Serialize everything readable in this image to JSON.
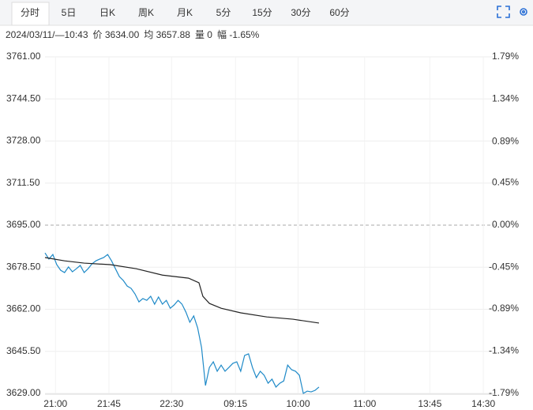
{
  "tabs": [
    "分时",
    "5日",
    "日K",
    "周K",
    "月K",
    "5分",
    "15分",
    "30分",
    "60分"
  ],
  "info": [
    "2024/03/11/—10:43",
    "价 3634.00",
    "均 3657.88",
    "量 0",
    "幅 -1.65%"
  ],
  "chart_data": {
    "type": "line",
    "xlim": [
      0,
      345
    ],
    "xticks": [
      {
        "value": 8,
        "label": "21:00"
      },
      {
        "value": 49,
        "label": "21:45"
      },
      {
        "value": 97,
        "label": "22:30"
      },
      {
        "value": 146,
        "label": "09:15"
      },
      {
        "value": 194,
        "label": "10:00"
      },
      {
        "value": 245,
        "label": "11:00"
      },
      {
        "value": 295,
        "label": "13:45"
      },
      {
        "value": 336,
        "label": "14:30"
      }
    ],
    "ylim": [
      3629,
      3761
    ],
    "yticks": [
      {
        "value": 3761,
        "label": "3761.00"
      },
      {
        "value": 3744.5,
        "label": "3744.50"
      },
      {
        "value": 3728,
        "label": "3728.00"
      },
      {
        "value": 3711.5,
        "label": "3711.50"
      },
      {
        "value": 3695,
        "label": "3695.00"
      },
      {
        "value": 3678.5,
        "label": "3678.50"
      },
      {
        "value": 3662,
        "label": "3662.00"
      },
      {
        "value": 3645.5,
        "label": "3645.50"
      },
      {
        "value": 3629,
        "label": "3629.00"
      }
    ],
    "y2lim": [
      -1.79,
      1.79
    ],
    "y2ticks": [
      {
        "value": 1.79,
        "label": "1.79%"
      },
      {
        "value": 1.34,
        "label": "1.34%"
      },
      {
        "value": 0.89,
        "label": "0.89%"
      },
      {
        "value": 0.45,
        "label": "0.45%"
      },
      {
        "value": 0,
        "label": "0.00%"
      },
      {
        "value": -0.45,
        "label": "-0.45%"
      },
      {
        "value": -0.89,
        "label": "-0.89%"
      },
      {
        "value": -1.34,
        "label": "-1.34%"
      },
      {
        "value": -1.79,
        "label": "-1.79%"
      }
    ],
    "grid": true,
    "series": [
      {
        "color": "#1f8ac8",
        "x": [
          0,
          3,
          6,
          9,
          12,
          15,
          18,
          21,
          24,
          27,
          30,
          33,
          36,
          39,
          42,
          45,
          48,
          51,
          54,
          57,
          60,
          63,
          66,
          69,
          72,
          75,
          78,
          81,
          84,
          87,
          90,
          93,
          96,
          99,
          102,
          105,
          108,
          111,
          114,
          117,
          120,
          123,
          126,
          129,
          132,
          135,
          138,
          141,
          144,
          147,
          150,
          153,
          156,
          159,
          162,
          165,
          168,
          171,
          174,
          177,
          180,
          183,
          186,
          189,
          192,
          195,
          198,
          201,
          204,
          207,
          210
        ],
        "values": [
          3684.1,
          3681.7,
          3683.5,
          3679.5,
          3677.3,
          3676.4,
          3678.6,
          3676.7,
          3677.9,
          3679.2,
          3676.4,
          3677.9,
          3679.8,
          3681.0,
          3681.7,
          3682.3,
          3683.5,
          3681.0,
          3677.9,
          3674.8,
          3673.3,
          3671.1,
          3670.2,
          3668.0,
          3664.9,
          3666.2,
          3665.5,
          3667.1,
          3664.0,
          3666.8,
          3664.0,
          3665.5,
          3662.4,
          3663.7,
          3665.5,
          3664.0,
          3660.9,
          3656.9,
          3659.4,
          3654.7,
          3647.0,
          3632.1,
          3639.2,
          3641.4,
          3637.7,
          3640.1,
          3637.7,
          3639.2,
          3640.8,
          3641.4,
          3637.7,
          3643.9,
          3644.5,
          3639.2,
          3635.2,
          3637.7,
          3636.1,
          3633.0,
          3634.6,
          3631.5,
          3633.0,
          3633.9,
          3640.1,
          3638.3,
          3637.7,
          3636.1,
          3629.0,
          3629.9,
          3629.6,
          3630.2,
          3631.5
        ]
      },
      {
        "color": "#222222",
        "x": [
          0,
          15,
          30,
          50,
          70,
          90,
          110,
          118,
          121,
          126,
          135,
          150,
          170,
          190,
          210
        ],
        "values": [
          3682.3,
          3681.0,
          3680.1,
          3679.5,
          3677.9,
          3675.4,
          3674.2,
          3672.4,
          3667.1,
          3664.3,
          3662.4,
          3660.6,
          3659.0,
          3658.1,
          3656.6
        ]
      }
    ]
  }
}
